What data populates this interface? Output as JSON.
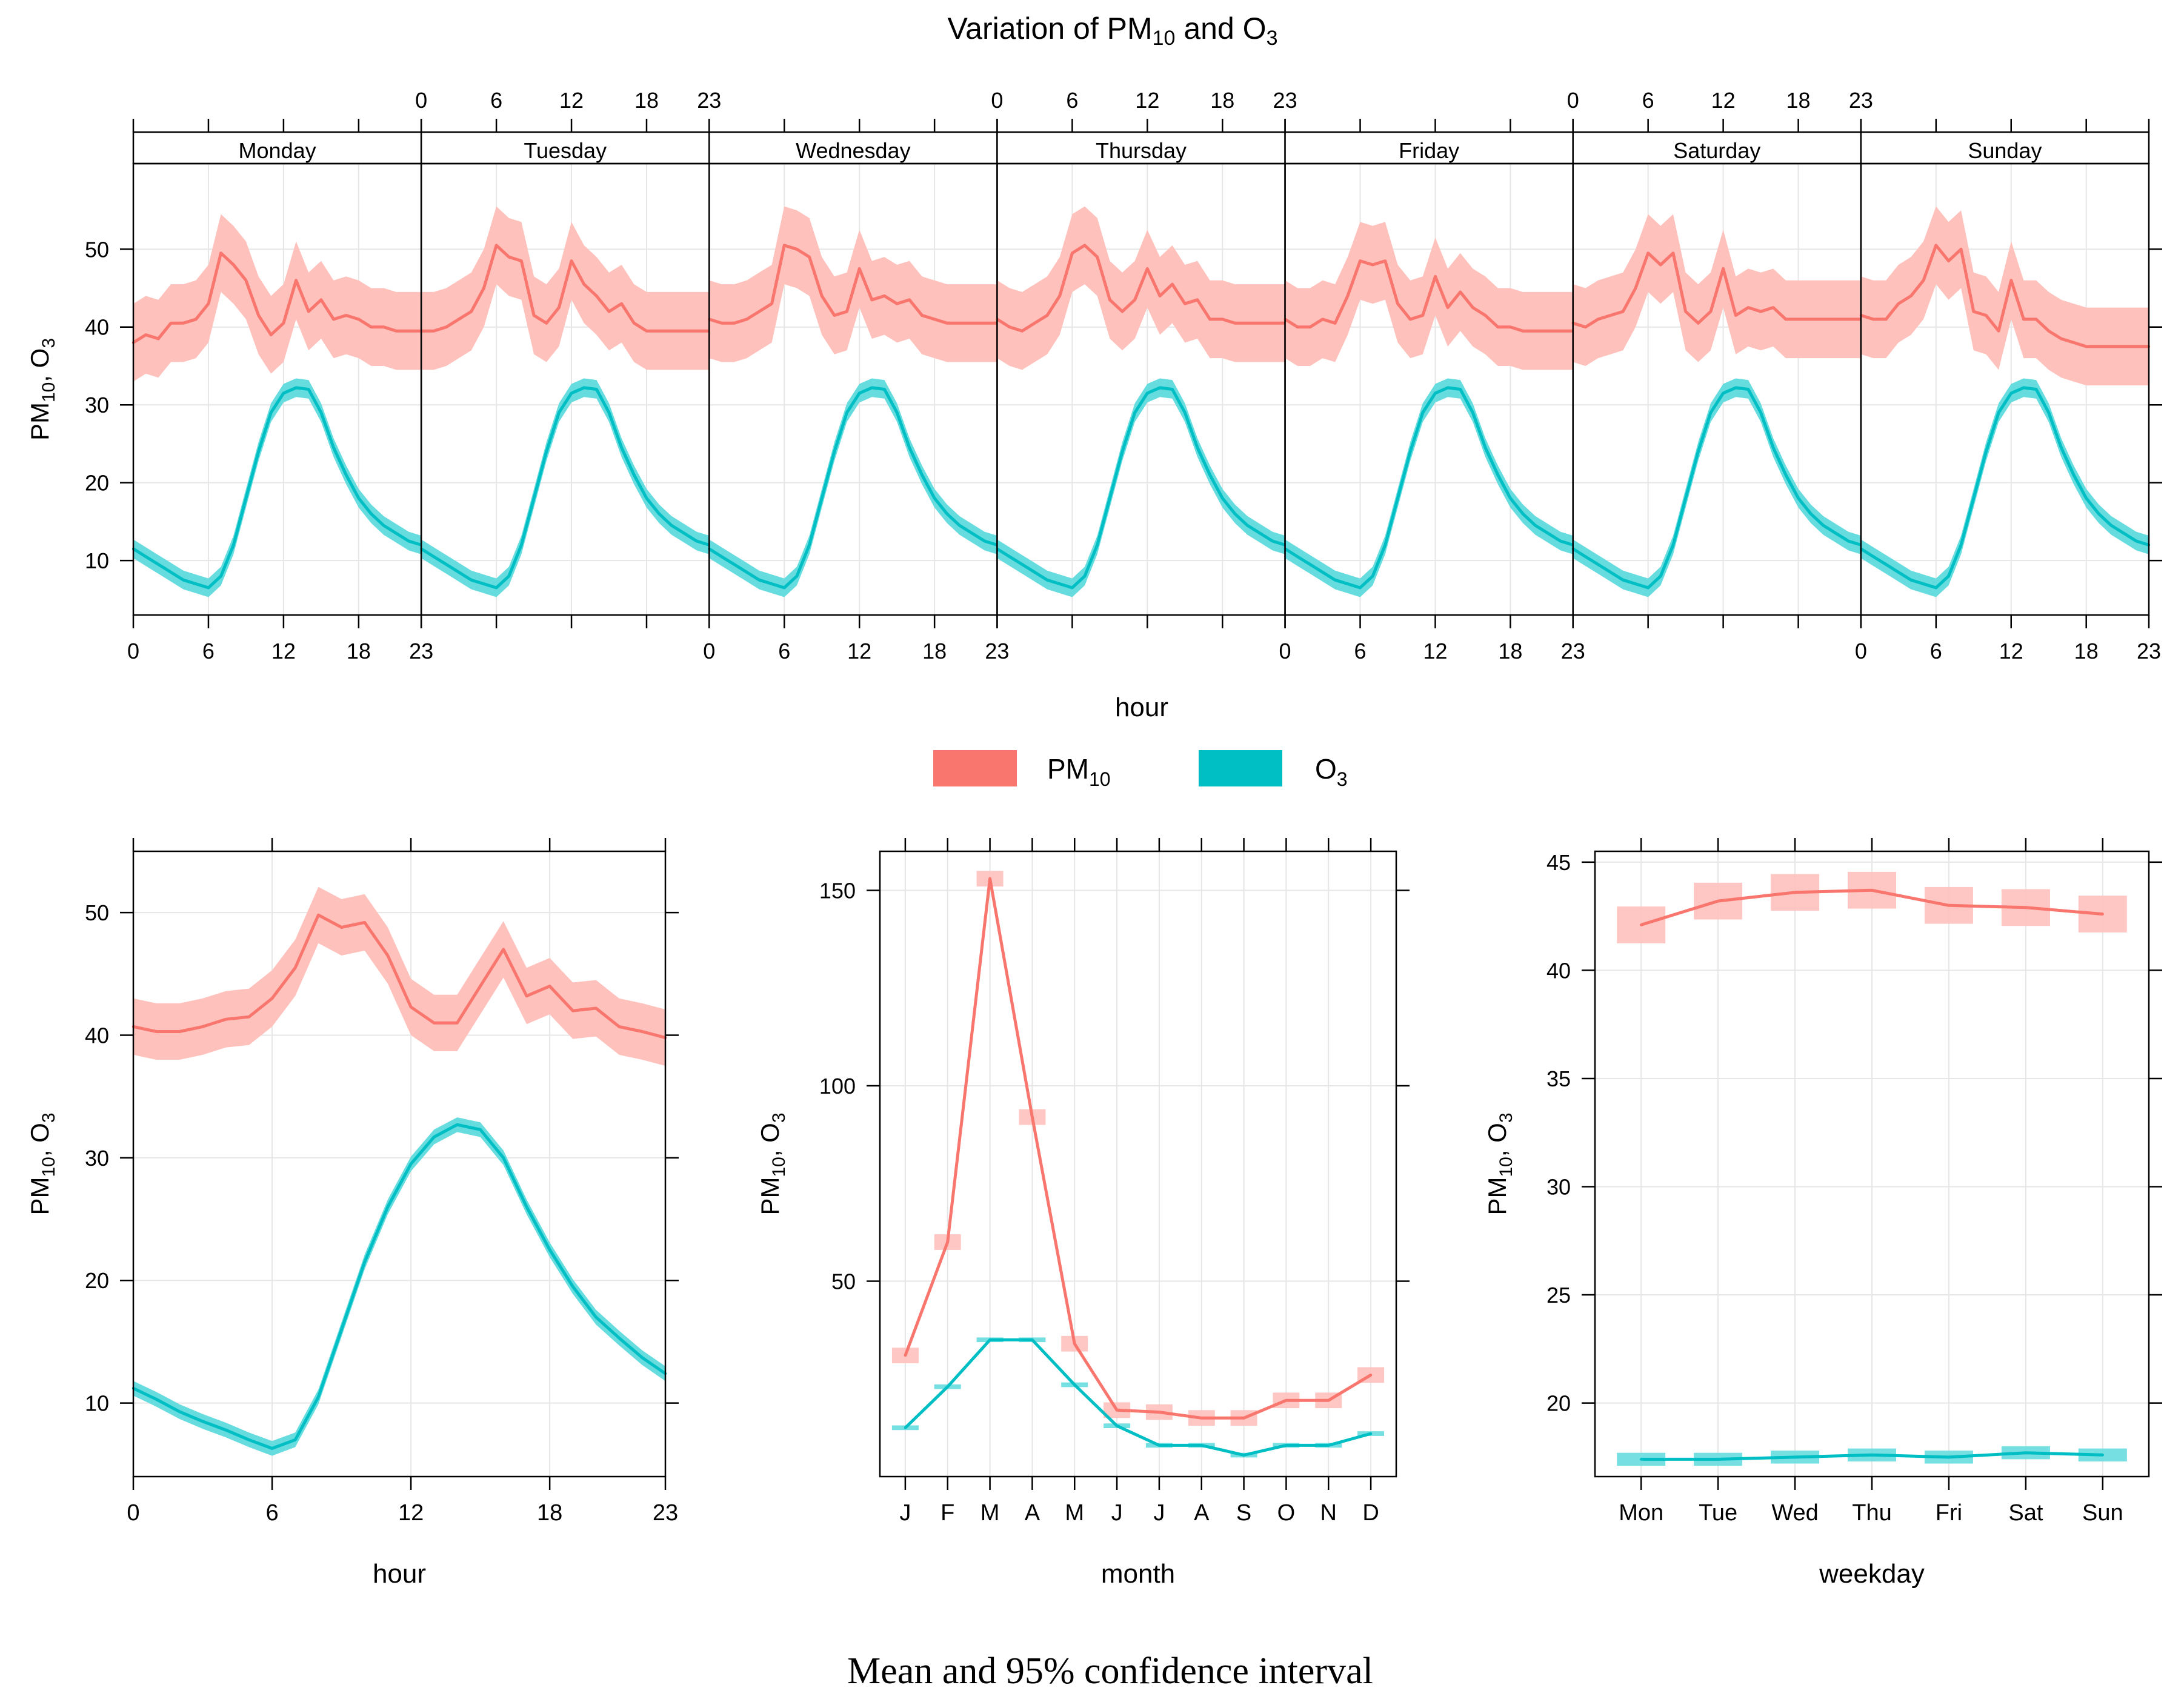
{
  "title": {
    "main": "Variation of PM",
    "sub1": "10",
    "mid": " and O",
    "sub2": "3"
  },
  "caption": "Mean and 95% confidence interval",
  "colors": {
    "pm10": "#F8766D",
    "o3": "#00BFC4",
    "pm10_band": "#FFC1BC",
    "o3_band": "#66DCDF",
    "grid": "#E6E6E6",
    "axis": "#000000"
  },
  "legend": [
    {
      "name": "PM",
      "sub": "10",
      "color": "#F8766D"
    },
    {
      "name": "O",
      "sub": "3",
      "color": "#00BFC4"
    }
  ],
  "chart_data": [
    {
      "id": "weekly_hour",
      "type": "line",
      "xlabel": "hour",
      "ylabel": {
        "a": "PM",
        "a_sub": "10",
        "b": ", O",
        "b_sub": "3"
      },
      "panels": [
        "Monday",
        "Tuesday",
        "Wednesday",
        "Thursday",
        "Friday",
        "Saturday",
        "Sunday"
      ],
      "x_ticks": [
        "0",
        "6",
        "12",
        "18",
        "23"
      ],
      "x_range": [
        0,
        23
      ],
      "ylim": [
        3,
        61
      ],
      "y_ticks": [
        "10",
        "20",
        "30",
        "40",
        "50"
      ],
      "series": [
        {
          "name": "PM10",
          "ci_halfwidth": 5,
          "values": [
            [
              38,
              39,
              38.5,
              40.5,
              40.5,
              41,
              43,
              49.5,
              48,
              46,
              41.5,
              39,
              40.5,
              46,
              42,
              43.5,
              41,
              41.5,
              41,
              40,
              40,
              39.5,
              39.5,
              39.5
            ],
            [
              39.5,
              39.5,
              40,
              41,
              42,
              45,
              50.5,
              49,
              48.5,
              41.5,
              40.5,
              42.5,
              48.5,
              45.5,
              44,
              42,
              43,
              40.5,
              39.5,
              39.5,
              39.5,
              39.5,
              39.5,
              39.5
            ],
            [
              41,
              40.5,
              40.5,
              41,
              42,
              43,
              50.5,
              50,
              49,
              44,
              41.5,
              42,
              47.5,
              43.5,
              44,
              43,
              43.5,
              41.5,
              41,
              40.5,
              40.5,
              40.5,
              40.5,
              40.5
            ],
            [
              41,
              40,
              39.5,
              40.5,
              41.5,
              44,
              49.5,
              50.5,
              49,
              43.5,
              42,
              43.5,
              47.5,
              44,
              45.5,
              43,
              43.5,
              41,
              41,
              40.5,
              40.5,
              40.5,
              40.5,
              40.5
            ],
            [
              41,
              40,
              40,
              41,
              40.5,
              44,
              48.5,
              48,
              48.5,
              43,
              41,
              41.5,
              46.5,
              42.5,
              44.5,
              42.5,
              41.5,
              40,
              40,
              39.5,
              39.5,
              39.5,
              39.5,
              39.5
            ],
            [
              40.5,
              40,
              41,
              41.5,
              42,
              45,
              49.5,
              48,
              49.5,
              42,
              40.5,
              42,
              47.5,
              41.5,
              42.5,
              42,
              42.5,
              41,
              41,
              41,
              41,
              41,
              41,
              41
            ],
            [
              41.5,
              41,
              41,
              43,
              44,
              46,
              50.5,
              48.5,
              50,
              42,
              41.5,
              39.5,
              46,
              41,
              41,
              39.5,
              38.5,
              38,
              37.5,
              37.5,
              37.5,
              37.5,
              37.5,
              37.5
            ]
          ]
        },
        {
          "name": "O3",
          "ci_halfwidth": 1.2,
          "values": [
            11.5,
            10.5,
            9.5,
            8.5,
            7.5,
            7,
            6.5,
            8,
            12,
            18,
            24,
            29,
            31.5,
            32.2,
            32,
            29,
            24.5,
            21,
            18,
            16,
            14.5,
            13.5,
            12.5,
            12
          ]
        }
      ]
    },
    {
      "id": "hour",
      "type": "line",
      "xlabel": "hour",
      "ylabel": {
        "a": "PM",
        "a_sub": "10",
        "b": ", O",
        "b_sub": "3"
      },
      "x_ticks": [
        "0",
        "6",
        "12",
        "18",
        "23"
      ],
      "x_range": [
        0,
        23
      ],
      "ylim": [
        4,
        55
      ],
      "y_ticks": [
        "10",
        "20",
        "30",
        "40",
        "50"
      ],
      "series": [
        {
          "name": "PM10",
          "ci_halfwidth": 2.3,
          "values": [
            40.7,
            40.3,
            40.3,
            40.7,
            41.3,
            41.5,
            43,
            45.5,
            49.8,
            48.8,
            49.2,
            46.5,
            42.3,
            41,
            41,
            44,
            47,
            43.2,
            44,
            42,
            42.2,
            40.7,
            40.3,
            39.8
          ]
        },
        {
          "name": "O3",
          "ci_halfwidth": 0.6,
          "values": [
            11.2,
            10.3,
            9.3,
            8.5,
            7.8,
            7,
            6.3,
            7,
            10.5,
            16,
            21.5,
            26,
            29.5,
            31.7,
            32.7,
            32.3,
            30,
            26,
            22.5,
            19.5,
            17,
            15.3,
            13.7,
            12.4
          ]
        }
      ]
    },
    {
      "id": "month",
      "type": "line",
      "xlabel": "month",
      "ylabel": {
        "a": "PM",
        "a_sub": "10",
        "b": ", O",
        "b_sub": "3"
      },
      "categories": [
        "J",
        "F",
        "M",
        "A",
        "M",
        "J",
        "J",
        "A",
        "S",
        "O",
        "N",
        "D"
      ],
      "ylim": [
        0,
        160
      ],
      "y_ticks": [
        "50",
        "100",
        "150"
      ],
      "series": [
        {
          "name": "PM10",
          "ci_halfwidth": 2,
          "values": [
            31,
            60,
            153,
            92,
            34,
            17,
            16.5,
            15,
            15,
            19.5,
            19.5,
            26
          ]
        },
        {
          "name": "O3",
          "ci_halfwidth": 0.6,
          "values": [
            12.5,
            23,
            35,
            35,
            23.5,
            13,
            8,
            8,
            5.5,
            8,
            8,
            11
          ]
        }
      ]
    },
    {
      "id": "weekday",
      "type": "line",
      "xlabel": "weekday",
      "ylabel": {
        "a": "PM",
        "a_sub": "10",
        "b": ", O",
        "b_sub": "3"
      },
      "categories": [
        "Mon",
        "Tue",
        "Wed",
        "Thu",
        "Fri",
        "Sat",
        "Sun"
      ],
      "ylim": [
        16.6,
        45.5
      ],
      "y_ticks": [
        "20",
        "25",
        "30",
        "35",
        "40",
        "45"
      ],
      "series": [
        {
          "name": "PM10",
          "ci_halfwidth": 0.85,
          "values": [
            42.1,
            43.2,
            43.6,
            43.7,
            43,
            42.9,
            42.6
          ]
        },
        {
          "name": "O3",
          "ci_halfwidth": 0.3,
          "values": [
            17.4,
            17.4,
            17.5,
            17.6,
            17.5,
            17.7,
            17.6
          ]
        }
      ]
    }
  ]
}
